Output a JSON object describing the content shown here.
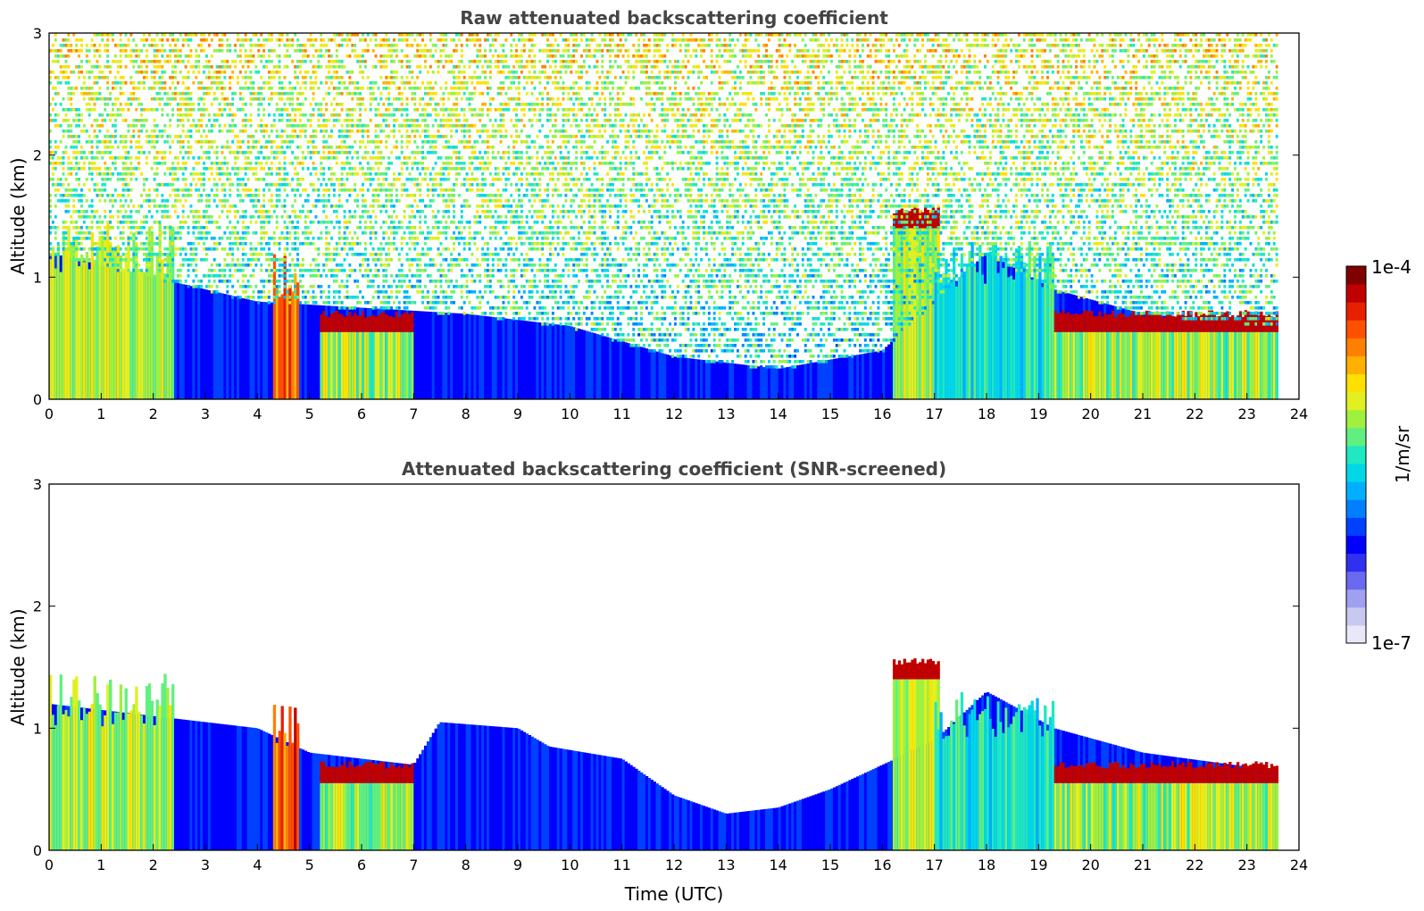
{
  "chart_data": [
    {
      "type": "heatmap",
      "title": "Raw attenuated backscattering coefficient",
      "xlabel": "",
      "ylabel": "Altitude (km)",
      "xlim": [
        0,
        24
      ],
      "ylim": [
        0,
        3
      ],
      "x_ticks": [
        "0",
        "1",
        "2",
        "3",
        "4",
        "5",
        "6",
        "7",
        "8",
        "9",
        "10",
        "11",
        "12",
        "13",
        "14",
        "15",
        "16",
        "17",
        "18",
        "19",
        "20",
        "21",
        "22",
        "23",
        "24"
      ],
      "y_ticks": [
        "0",
        "1",
        "2",
        "3"
      ],
      "data_end_hour": 23.6,
      "noise_level": "high",
      "boundary_layer_top_km": [
        [
          0,
          1.2
        ],
        [
          2,
          1.0
        ],
        [
          4,
          0.8
        ],
        [
          6,
          0.75
        ],
        [
          8,
          0.7
        ],
        [
          10,
          0.6
        ],
        [
          12,
          0.35
        ],
        [
          14,
          0.25
        ],
        [
          16,
          0.4
        ],
        [
          17,
          0.8
        ],
        [
          18,
          1.2
        ],
        [
          19.3,
          0.9
        ],
        [
          21,
          0.7
        ],
        [
          23.6,
          0.6
        ]
      ],
      "features": [
        {
          "label": "rain_streaks",
          "x_start": 0.0,
          "x_end": 2.4,
          "y_top_km": 1.45,
          "intensity": "high"
        },
        {
          "label": "shower",
          "x_start": 4.3,
          "x_end": 4.8,
          "y_top_km": 1.2,
          "intensity": "very_high"
        },
        {
          "label": "cloud_layer",
          "x_start": 5.2,
          "x_end": 7.0,
          "y_km": 0.55,
          "intensity": "very_high"
        },
        {
          "label": "cloud_layer",
          "x_start": 16.2,
          "x_end": 17.1,
          "y_km": 1.4,
          "intensity": "very_high"
        },
        {
          "label": "cloud_layer",
          "x_start": 19.3,
          "x_end": 23.6,
          "y_km": 0.55,
          "intensity": "very_high"
        },
        {
          "label": "precipitation",
          "x_start": 17.0,
          "x_end": 19.3,
          "y_top_km": 1.3,
          "intensity": "medium"
        }
      ]
    },
    {
      "type": "heatmap",
      "title": "Attenuated backscattering coefficient (SNR-screened)",
      "xlabel": "Time (UTC)",
      "ylabel": "Altitude (km)",
      "xlim": [
        0,
        24
      ],
      "ylim": [
        0,
        3
      ],
      "x_ticks": [
        "0",
        "1",
        "2",
        "3",
        "4",
        "5",
        "6",
        "7",
        "8",
        "9",
        "10",
        "11",
        "12",
        "13",
        "14",
        "15",
        "16",
        "17",
        "18",
        "19",
        "20",
        "21",
        "22",
        "23",
        "24"
      ],
      "y_ticks": [
        "0",
        "1",
        "2",
        "3"
      ],
      "data_end_hour": 23.6,
      "noise_level": "none",
      "boundary_layer_top_km": [
        [
          0,
          1.2
        ],
        [
          2,
          1.1
        ],
        [
          4,
          1.0
        ],
        [
          5,
          0.8
        ],
        [
          7,
          0.7
        ],
        [
          7.5,
          1.05
        ],
        [
          9,
          1.0
        ],
        [
          9.6,
          0.85
        ],
        [
          11,
          0.75
        ],
        [
          12,
          0.45
        ],
        [
          13,
          0.3
        ],
        [
          14,
          0.35
        ],
        [
          15,
          0.5
        ],
        [
          16,
          0.7
        ],
        [
          17,
          0.9
        ],
        [
          18,
          1.3
        ],
        [
          19.3,
          1.0
        ],
        [
          21,
          0.8
        ],
        [
          23.6,
          0.65
        ]
      ],
      "features": [
        {
          "label": "rain_streaks",
          "x_start": 0.0,
          "x_end": 2.4,
          "y_top_km": 1.45,
          "intensity": "high"
        },
        {
          "label": "shower",
          "x_start": 4.3,
          "x_end": 4.8,
          "y_top_km": 1.2,
          "intensity": "very_high"
        },
        {
          "label": "cloud_layer",
          "x_start": 5.2,
          "x_end": 7.0,
          "y_km": 0.55,
          "intensity": "very_high"
        },
        {
          "label": "cloud_layer",
          "x_start": 16.2,
          "x_end": 17.1,
          "y_km": 1.4,
          "intensity": "very_high"
        },
        {
          "label": "cloud_layer",
          "x_start": 19.3,
          "x_end": 23.6,
          "y_km": 0.55,
          "intensity": "very_high"
        },
        {
          "label": "precipitation",
          "x_start": 17.0,
          "x_end": 19.3,
          "y_top_km": 1.3,
          "intensity": "medium"
        }
      ]
    }
  ],
  "colorbar": {
    "label": "1/m/sr",
    "min_label": "1e-7",
    "max_label": "1e-4",
    "scale": "log",
    "colors": [
      "#e8e8f8",
      "#c8c8f0",
      "#a0a0f0",
      "#6a6af0",
      "#3030f0",
      "#0000ff",
      "#0040ff",
      "#0080ff",
      "#00b0ff",
      "#00d8e8",
      "#20e8c0",
      "#60f080",
      "#a0f040",
      "#e0f020",
      "#ffe000",
      "#ffb000",
      "#ff8000",
      "#ff5000",
      "#e82000",
      "#c00000",
      "#800000"
    ]
  }
}
